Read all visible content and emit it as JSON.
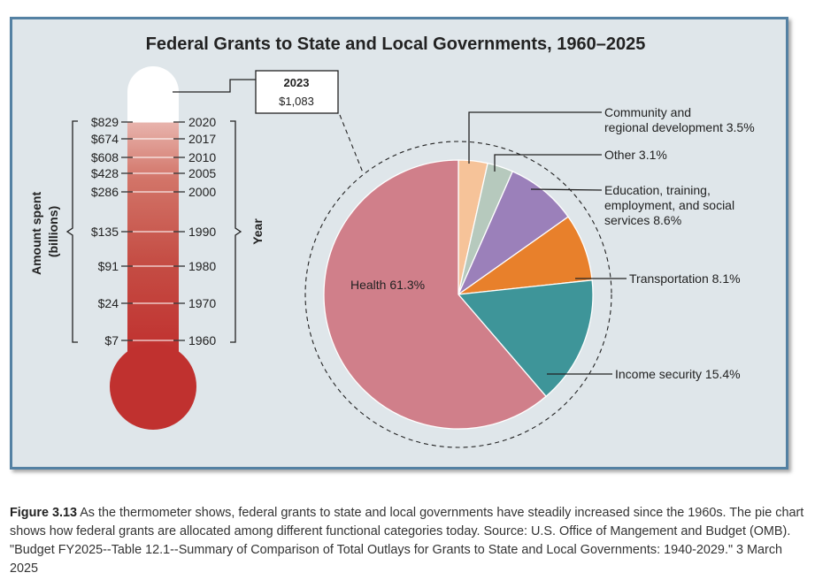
{
  "colors": {
    "frame_border": "#5481a3",
    "frame_bg": "#dfe6ea",
    "thermo_top": "#e8b4ad",
    "thermo_bottom": "#c0312f"
  },
  "chart_data": [
    {
      "type": "thermometer",
      "title": "Federal Grants to State and Local Governments, 1960–2025",
      "ylabel": "Amount spent (billions)",
      "y2label": "Year",
      "max_label": {
        "year": "2023",
        "amount": "$1,083"
      },
      "points": [
        {
          "year": "1960",
          "amount": "$7"
        },
        {
          "year": "1970",
          "amount": "$24"
        },
        {
          "year": "1980",
          "amount": "$91"
        },
        {
          "year": "1990",
          "amount": "$135"
        },
        {
          "year": "2000",
          "amount": "$286"
        },
        {
          "year": "2005",
          "amount": "$428"
        },
        {
          "year": "2010",
          "amount": "$608"
        },
        {
          "year": "2017",
          "amount": "$674"
        },
        {
          "year": "2020",
          "amount": "$829"
        }
      ]
    },
    {
      "type": "pie",
      "slices": [
        {
          "label": "Community and regional development 3.5%",
          "lines": [
            "Community and",
            "regional development 3.5%"
          ],
          "value": 3.5,
          "color": "#f6c399"
        },
        {
          "label": "Other 3.1%",
          "lines": [
            "Other 3.1%"
          ],
          "value": 3.1,
          "color": "#b6c9bd"
        },
        {
          "label": "Education, training, employment, and social services 8.6%",
          "lines": [
            "Education, training,",
            "employment, and social",
            "services 8.6%"
          ],
          "value": 8.6,
          "color": "#9b80ba"
        },
        {
          "label": "Transportation 8.1%",
          "lines": [
            "Transportation 8.1%"
          ],
          "value": 8.1,
          "color": "#e8802b"
        },
        {
          "label": "Income security 15.4%",
          "lines": [
            "Income security 15.4%"
          ],
          "value": 15.4,
          "color": "#3e9599"
        },
        {
          "label": "Health 61.3%",
          "lines": [
            "Health 61.3%"
          ],
          "value": 61.3,
          "color": "#d07f8a"
        }
      ]
    }
  ],
  "caption": {
    "figure_number": "Figure 3.13",
    "text": " As the thermometer shows, federal grants to state and local governments have steadily increased since the 1960s. The pie chart shows how federal grants are allocated among different functional categories today. Source: U.S. Office of Mangement and Budget (OMB). \"Budget FY2025--Table 12.1--Summary of Comparison of Total Outlays for Grants to State and Local Governments: 1940-2029.\" 3 March 2025"
  }
}
